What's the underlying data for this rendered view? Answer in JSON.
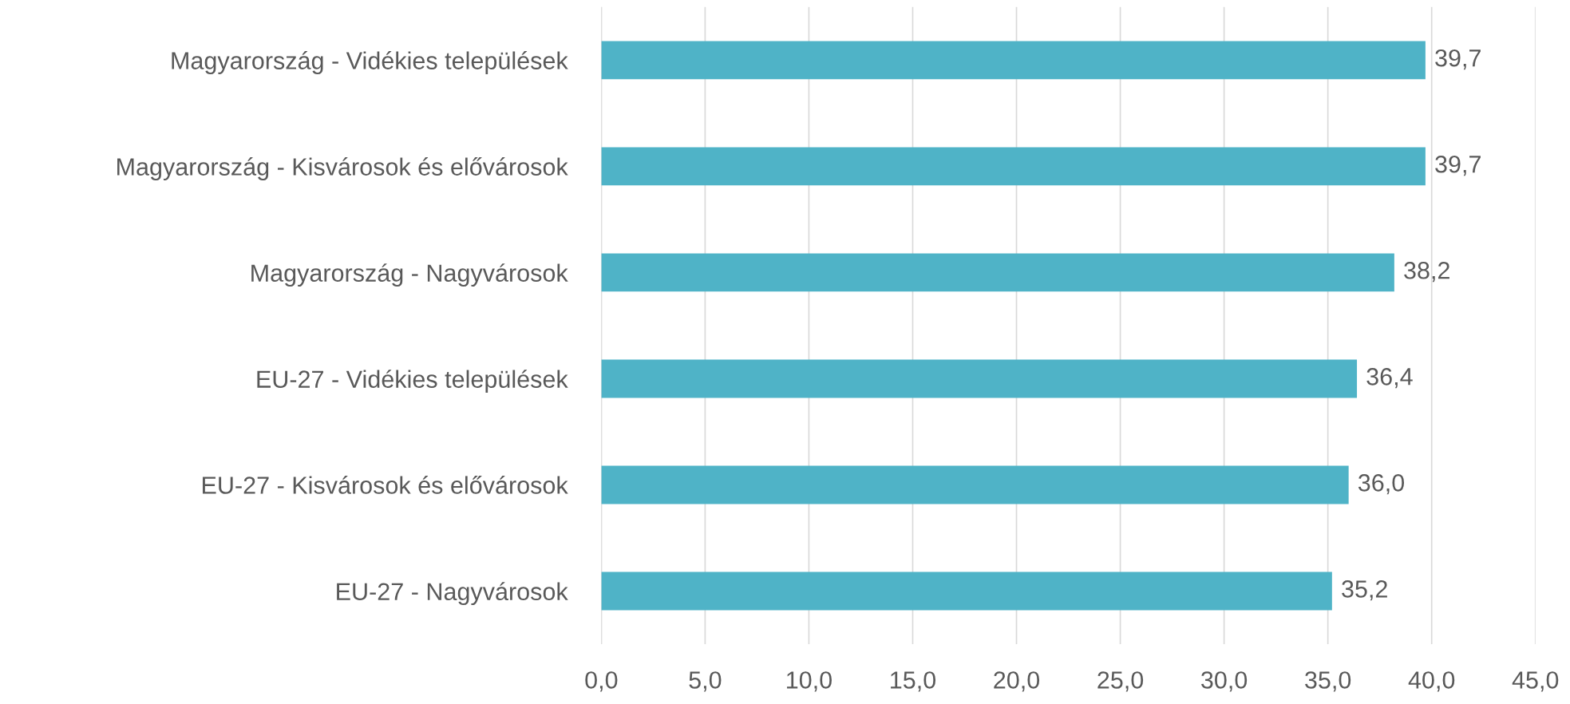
{
  "chart_data": {
    "type": "bar",
    "orientation": "horizontal",
    "categories": [
      "Magyarország - Vidékies települések",
      "Magyarország - Kisvárosok és elővárosok",
      "Magyarország - Nagyvárosok",
      "EU-27 - Vidékies települések",
      "EU-27 - Kisvárosok és elővárosok",
      "EU-27 - Nagyvárosok"
    ],
    "values": [
      39.7,
      39.7,
      38.2,
      36.4,
      36.0,
      35.2
    ],
    "value_labels": [
      "39,7",
      "39,7",
      "38,2",
      "36,4",
      "36,0",
      "35,2"
    ],
    "color": "#4fb3c7",
    "xlim": [
      0,
      45
    ],
    "xticks": [
      {
        "value": 0,
        "label": "0,0"
      },
      {
        "value": 5,
        "label": "5,0"
      },
      {
        "value": 10,
        "label": "10,0"
      },
      {
        "value": 15,
        "label": "15,0"
      },
      {
        "value": 20,
        "label": "20,0"
      },
      {
        "value": 25,
        "label": "25,0"
      },
      {
        "value": 30,
        "label": "30,0"
      },
      {
        "value": 35,
        "label": "35,0"
      },
      {
        "value": 40,
        "label": "40,0"
      },
      {
        "value": 45,
        "label": "45,0"
      }
    ],
    "grid": "x"
  }
}
